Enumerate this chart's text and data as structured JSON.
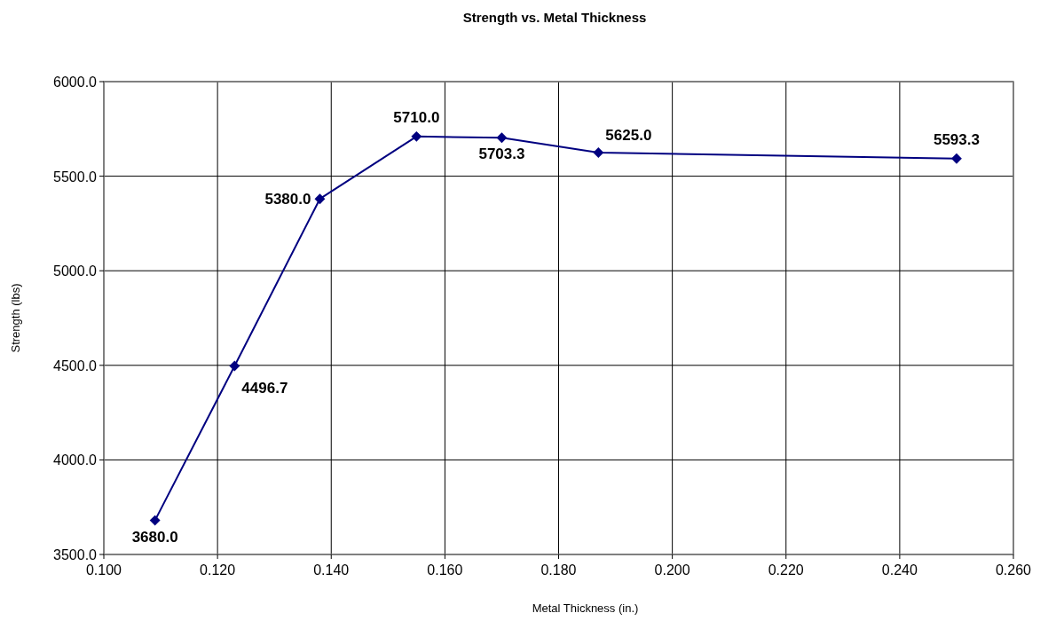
{
  "chart_data": {
    "type": "line",
    "title": "Strength vs. Metal Thickness",
    "xlabel": "Metal Thickness (in.)",
    "ylabel": "Strength (lbs)",
    "x": [
      0.109,
      0.123,
      0.138,
      0.155,
      0.17,
      0.187,
      0.25
    ],
    "series": [
      {
        "color": "#000080",
        "values": [
          3680.0,
          4496.7,
          5380.0,
          5710.0,
          5703.3,
          5625.0,
          5593.3
        ]
      }
    ],
    "value_labels": [
      "3680.0",
      "4496.7",
      "5380.0",
      "5710.0",
      "5703.3",
      "5625.0",
      "5593.3"
    ],
    "xlim": [
      0.1,
      0.26
    ],
    "xticks": [
      {
        "value": 0.1,
        "label": "0.100"
      },
      {
        "value": 0.12,
        "label": "0.120"
      },
      {
        "value": 0.14,
        "label": "0.140"
      },
      {
        "value": 0.16,
        "label": "0.160"
      },
      {
        "value": 0.18,
        "label": "0.180"
      },
      {
        "value": 0.2,
        "label": "0.200"
      },
      {
        "value": 0.22,
        "label": "0.220"
      },
      {
        "value": 0.24,
        "label": "0.240"
      },
      {
        "value": 0.26,
        "label": "0.260"
      }
    ],
    "ylim": [
      3500,
      6000
    ],
    "yticks": [
      {
        "value": 3500,
        "label": "3500.0"
      },
      {
        "value": 4000,
        "label": "4000.0"
      },
      {
        "value": 4500,
        "label": "4500.0"
      },
      {
        "value": 5000,
        "label": "5000.0"
      },
      {
        "value": 5500,
        "label": "5500.0"
      },
      {
        "value": 6000,
        "label": "6000.0"
      }
    ],
    "grid": true,
    "marker": "diamond",
    "line_style": "solid"
  }
}
